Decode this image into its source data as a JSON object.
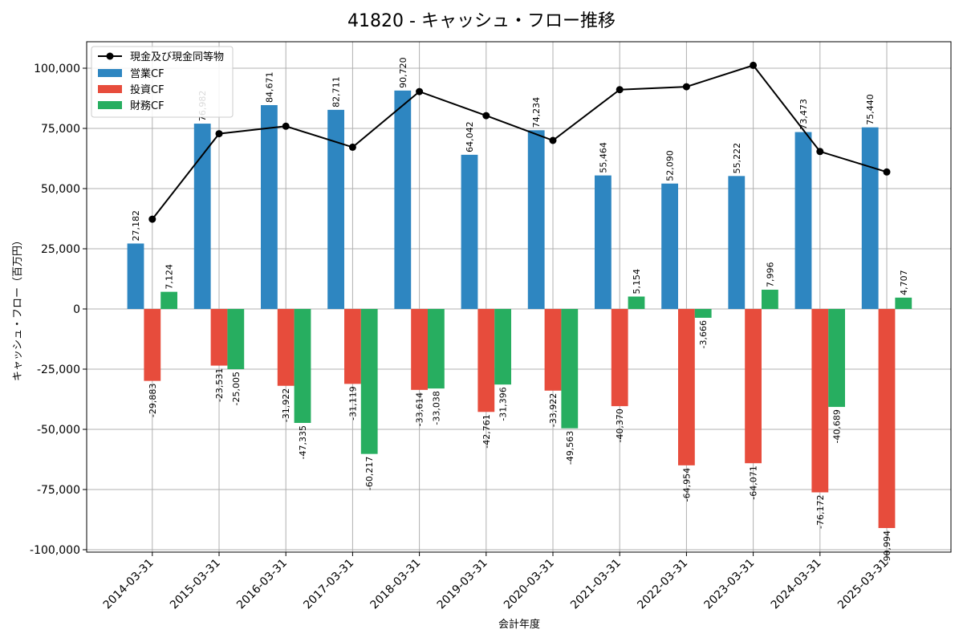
{
  "chart_data": {
    "type": "bar+line",
    "title": "41820 - キャッシュ・フロー推移",
    "xlabel": "会計年度",
    "ylabel": "キャッシュ・フロー（百万円）",
    "ylim": [
      -101000,
      111000
    ],
    "yticks": [
      -100000,
      -75000,
      -50000,
      -25000,
      0,
      25000,
      50000,
      75000,
      100000
    ],
    "ytick_labels": [
      "-100,000",
      "-75,000",
      "-50,000",
      "-25,000",
      "0",
      "25,000",
      "50,000",
      "75,000",
      "100,000"
    ],
    "grid": true,
    "legend_position": "top-left",
    "categories": [
      "2014-03-31",
      "2015-03-31",
      "2016-03-31",
      "2017-03-31",
      "2018-03-31",
      "2019-03-31",
      "2020-03-31",
      "2021-03-31",
      "2022-03-31",
      "2023-03-31",
      "2024-03-31",
      "2025-03-31"
    ],
    "series": [
      {
        "name": "営業CF",
        "kind": "bar",
        "color": "#2e86c1",
        "values": [
          27182,
          76982,
          84671,
          82711,
          90720,
          64042,
          74234,
          55464,
          52090,
          55222,
          73473,
          75440
        ],
        "labels": [
          "27,182",
          "76,982",
          "84,671",
          "82,711",
          "90,720",
          "64,042",
          "74,234",
          "55,464",
          "52,090",
          "55,222",
          "73,473",
          "75,440"
        ]
      },
      {
        "name": "投資CF",
        "kind": "bar",
        "color": "#e74c3c",
        "values": [
          -29883,
          -23531,
          -31922,
          -31119,
          -33614,
          -42761,
          -33922,
          -40370,
          -64954,
          -64071,
          -76172,
          -90994
        ],
        "labels": [
          "-29,883",
          "-23,531",
          "-31,922",
          "-31,119",
          "-33,614",
          "-42,761",
          "-33,922",
          "-40,370",
          "-64,954",
          "-64,071",
          "-76,172",
          "-90,994"
        ]
      },
      {
        "name": "財務CF",
        "kind": "bar",
        "color": "#27ae60",
        "values": [
          7124,
          -25005,
          -47335,
          -60217,
          -33038,
          -31396,
          -49563,
          5154,
          -3666,
          7996,
          -40689,
          4707
        ],
        "labels": [
          "7,124",
          "-25,005",
          "-47,335",
          "-60,217",
          "-33,038",
          "-31,396",
          "-49,563",
          "5,154",
          "-3,666",
          "7,996",
          "-40,689",
          "4,707"
        ]
      },
      {
        "name": "現金及び現金同等物",
        "kind": "line",
        "color": "#000000",
        "values": [
          37300,
          72800,
          75900,
          67200,
          90300,
          80300,
          70000,
          91100,
          92300,
          101200,
          65400,
          56900
        ]
      }
    ]
  }
}
